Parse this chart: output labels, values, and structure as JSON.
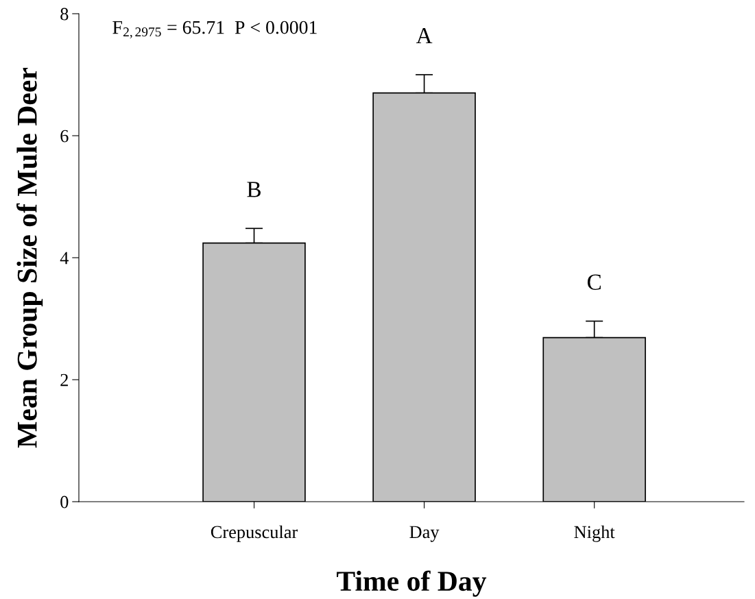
{
  "chart_data": {
    "type": "bar",
    "xlabel": "Time of Day",
    "ylabel": "Mean Group Size of Mule Deer",
    "categories": [
      "Crepuscular",
      "Day",
      "Night"
    ],
    "values": [
      4.24,
      6.7,
      2.69
    ],
    "errors": [
      0.24,
      0.3,
      0.27
    ],
    "color": "#c0c0c0",
    "ylim": [
      0,
      8
    ],
    "yticks": [
      0,
      2,
      4,
      6,
      8
    ],
    "grid": false,
    "annotations": [
      "F$_{2,2975}$ = 65.71  P < 0.0001",
      "B",
      "A",
      "C"
    ]
  }
}
